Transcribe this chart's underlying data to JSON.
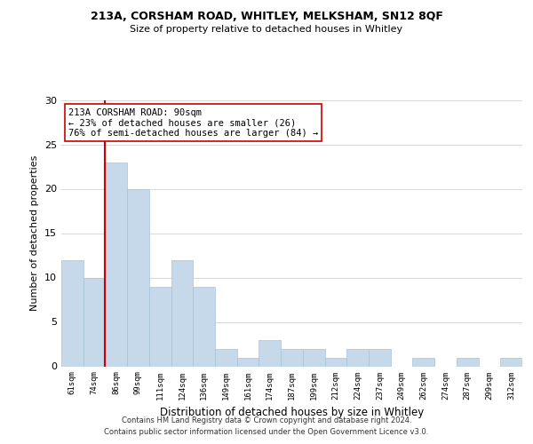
{
  "title1": "213A, CORSHAM ROAD, WHITLEY, MELKSHAM, SN12 8QF",
  "title2": "Size of property relative to detached houses in Whitley",
  "xlabel": "Distribution of detached houses by size in Whitley",
  "ylabel": "Number of detached properties",
  "bar_labels": [
    "61sqm",
    "74sqm",
    "86sqm",
    "99sqm",
    "111sqm",
    "124sqm",
    "136sqm",
    "149sqm",
    "161sqm",
    "174sqm",
    "187sqm",
    "199sqm",
    "212sqm",
    "224sqm",
    "237sqm",
    "249sqm",
    "262sqm",
    "274sqm",
    "287sqm",
    "299sqm",
    "312sqm"
  ],
  "bar_values": [
    12,
    10,
    23,
    20,
    9,
    12,
    9,
    2,
    1,
    3,
    2,
    2,
    1,
    2,
    2,
    0,
    1,
    0,
    1,
    0,
    1
  ],
  "bar_color": "#c6d9ea",
  "bar_edge_color": "#a8c4d8",
  "subject_line_index": 2,
  "subject_line_color": "#cc0000",
  "annotation_line1": "213A CORSHAM ROAD: 90sqm",
  "annotation_line2": "← 23% of detached houses are smaller (26)",
  "annotation_line3": "76% of semi-detached houses are larger (84) →",
  "annotation_box_edge": "#cc0000",
  "ylim": [
    0,
    30
  ],
  "yticks": [
    0,
    5,
    10,
    15,
    20,
    25,
    30
  ],
  "grid_color": "#d0dce8",
  "background_color": "#ffffff",
  "footer1": "Contains HM Land Registry data © Crown copyright and database right 2024.",
  "footer2": "Contains public sector information licensed under the Open Government Licence v3.0."
}
